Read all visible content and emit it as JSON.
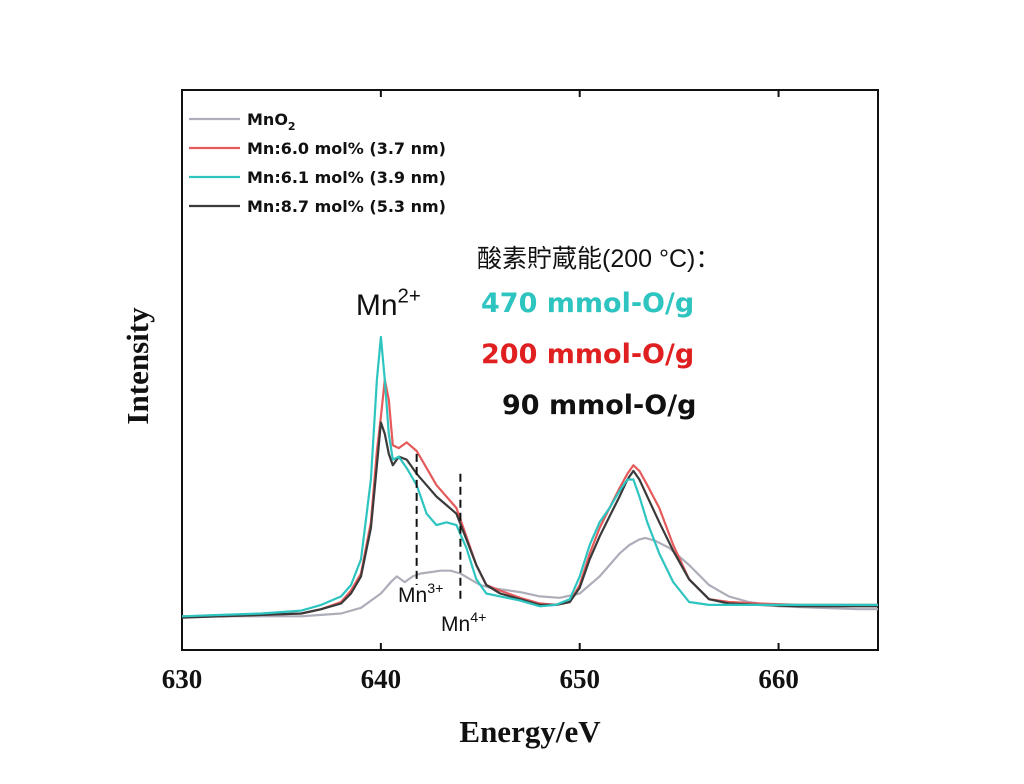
{
  "chart_data": {
    "type": "line",
    "xlabel": "Energy/eV",
    "ylabel": "Intensity",
    "xlim": [
      630,
      665
    ],
    "ylim": [
      0,
      1
    ],
    "x_ticks": [
      630,
      640,
      650,
      660
    ],
    "x_tick_labels": [
      "630",
      "640",
      "650",
      "660"
    ],
    "y_ticks_shown": false,
    "grid": false,
    "legend_position": "top-left",
    "series": [
      {
        "name": "MnO",
        "name_subscript": "2",
        "color": "#aeaeba",
        "x": [
          630,
          632,
          634,
          636,
          637,
          638,
          639,
          640,
          640.5,
          640.8,
          641.2,
          641.6,
          642,
          642.5,
          643,
          643.5,
          644,
          644.5,
          645,
          645.5,
          646,
          647,
          648,
          649,
          650,
          651,
          652,
          652.5,
          653,
          653.3,
          653.8,
          654.5,
          655.5,
          656.5,
          657.5,
          658.5,
          660,
          662,
          664,
          665
        ],
        "values": [
          0.02,
          0.02,
          0.02,
          0.02,
          0.025,
          0.03,
          0.05,
          0.1,
          0.14,
          0.16,
          0.14,
          0.16,
          0.17,
          0.175,
          0.18,
          0.18,
          0.17,
          0.15,
          0.13,
          0.12,
          0.115,
          0.105,
          0.09,
          0.085,
          0.1,
          0.16,
          0.24,
          0.27,
          0.29,
          0.295,
          0.285,
          0.26,
          0.2,
          0.13,
          0.09,
          0.07,
          0.055,
          0.05,
          0.045,
          0.045
        ]
      },
      {
        "name": "Mn:6.0 mol% (3.7 nm)",
        "color": "#e55a5a",
        "x": [
          630,
          632,
          634,
          636,
          637,
          638,
          638.5,
          639,
          639.5,
          639.8,
          640,
          640.2,
          640.4,
          640.6,
          640.9,
          641.3,
          641.8,
          642.3,
          642.8,
          643.3,
          643.8,
          644.3,
          644.8,
          645.3,
          646,
          647,
          648,
          648.8,
          649.5,
          650,
          650.5,
          651,
          651.5,
          652,
          652.4,
          652.7,
          653,
          653.4,
          654,
          654.7,
          655.5,
          656.5,
          657.5,
          659,
          661,
          663,
          665
        ],
        "values": [
          0.02,
          0.02,
          0.025,
          0.03,
          0.045,
          0.07,
          0.11,
          0.17,
          0.35,
          0.6,
          0.72,
          0.85,
          0.78,
          0.62,
          0.61,
          0.63,
          0.6,
          0.54,
          0.48,
          0.44,
          0.4,
          0.3,
          0.2,
          0.13,
          0.11,
          0.085,
          0.065,
          0.06,
          0.07,
          0.13,
          0.24,
          0.33,
          0.4,
          0.47,
          0.52,
          0.55,
          0.53,
          0.48,
          0.4,
          0.27,
          0.15,
          0.08,
          0.07,
          0.065,
          0.06,
          0.06,
          0.06
        ]
      },
      {
        "name": "Mn:6.1 mol% (3.9 nm)",
        "color": "#2ec4c0",
        "x": [
          630,
          632,
          634,
          636,
          637,
          638,
          638.5,
          639,
          639.5,
          639.8,
          640,
          640.2,
          640.4,
          640.6,
          640.9,
          641.3,
          641.8,
          642.3,
          642.8,
          643.3,
          643.8,
          644.3,
          644.8,
          645.3,
          646,
          647,
          648,
          648.8,
          649.5,
          650,
          650.5,
          651,
          651.5,
          652,
          652.4,
          652.7,
          653,
          653.4,
          654,
          654.7,
          655.5,
          656.5,
          657.5,
          659,
          661,
          663,
          665
        ],
        "values": [
          0.02,
          0.025,
          0.03,
          0.04,
          0.06,
          0.09,
          0.13,
          0.22,
          0.5,
          0.85,
          1.0,
          0.85,
          0.66,
          0.57,
          0.58,
          0.54,
          0.48,
          0.38,
          0.34,
          0.35,
          0.34,
          0.26,
          0.15,
          0.1,
          0.09,
          0.075,
          0.055,
          0.06,
          0.08,
          0.16,
          0.27,
          0.35,
          0.4,
          0.46,
          0.5,
          0.5,
          0.44,
          0.35,
          0.24,
          0.14,
          0.07,
          0.06,
          0.06,
          0.06,
          0.06,
          0.06,
          0.06
        ]
      },
      {
        "name": "Mn:8.7 mol% (5.3 nm)",
        "color": "#3a3a3a",
        "x": [
          630,
          632,
          634,
          636,
          637,
          638,
          638.5,
          639,
          639.5,
          639.8,
          640,
          640.2,
          640.4,
          640.6,
          640.9,
          641.3,
          641.8,
          642.3,
          642.8,
          643.3,
          643.8,
          644.3,
          644.8,
          645.3,
          646,
          647,
          648,
          648.8,
          649.5,
          650,
          650.5,
          651,
          651.5,
          652,
          652.4,
          652.7,
          653,
          653.4,
          654,
          654.7,
          655.5,
          656.5,
          657.5,
          659,
          661,
          663,
          665
        ],
        "values": [
          0.015,
          0.02,
          0.025,
          0.03,
          0.045,
          0.065,
          0.1,
          0.16,
          0.33,
          0.55,
          0.7,
          0.66,
          0.59,
          0.55,
          0.58,
          0.57,
          0.52,
          0.48,
          0.44,
          0.41,
          0.38,
          0.29,
          0.2,
          0.13,
          0.1,
          0.08,
          0.06,
          0.06,
          0.07,
          0.12,
          0.22,
          0.3,
          0.37,
          0.44,
          0.5,
          0.53,
          0.5,
          0.44,
          0.35,
          0.25,
          0.15,
          0.08,
          0.065,
          0.06,
          0.055,
          0.055,
          0.055
        ]
      }
    ],
    "annotations": {
      "peak_mn2": {
        "base": "Mn",
        "sup": "2+",
        "x": 640.1
      },
      "marker_mn3": {
        "base": "Mn",
        "sup": "3+",
        "x": 641.8,
        "line_from": 0.13,
        "line_to": 0.59
      },
      "marker_mn4": {
        "base": "Mn",
        "sup": "4+",
        "x": 644.0,
        "line_from": 0.07,
        "line_to": 0.52
      },
      "storage_header": "酸素貯蔵能(200 °C)：",
      "storage_values": [
        {
          "text": "470 mmol-O/g",
          "color": "#2ec4c0"
        },
        {
          "text": "200 mmol-O/g",
          "color": "#e02020"
        },
        {
          "text": "90 mmol-O/g",
          "color": "#111111"
        }
      ]
    }
  }
}
